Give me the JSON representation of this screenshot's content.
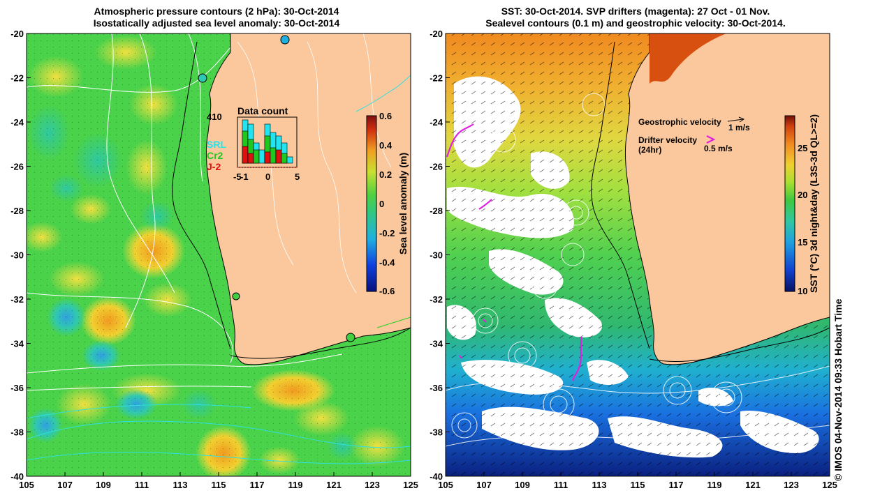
{
  "left_panel": {
    "title_line1": "Atmospheric pressure contours (2 hPa): 30-Oct-2014",
    "title_line2": "Isostatically adjusted sea level anomaly: 30-Oct-2014",
    "colorbar": {
      "label": "Sea level anomaly (m)",
      "ticks": [
        "0.6",
        "0.4",
        "0.2",
        "0",
        "-0.2",
        "-0.4",
        "-0.6"
      ]
    },
    "inset": {
      "title": "Data count",
      "max_count": "410",
      "legend": [
        {
          "label": "SRL",
          "color": "#22e4f0"
        },
        {
          "label": "Cr2",
          "color": "#1ec81e"
        },
        {
          "label": "J-2",
          "color": "#e01010"
        }
      ],
      "x_ticks": [
        "-5",
        "-1",
        "0",
        "5"
      ]
    }
  },
  "right_panel": {
    "title_line1": "SST: 30-Oct-2014. SVP drifters (magenta): 27 Oct - 01 Nov.",
    "title_line2": "Sealevel contours (0.1 m) and geostrophic velocity: 30-Oct-2014.",
    "colorbar": {
      "label": "SST (°C) 3d night&day (L3S-3d QL>=2)",
      "ticks": [
        "25",
        "20",
        "15",
        "10"
      ]
    },
    "legend": {
      "geo_label": "Geostrophic velocity",
      "geo_scale": "1 m/s",
      "drifter_label": "Drifter velocity",
      "drifter_sub": "(24hr)",
      "drifter_scale": "0.5 m/s"
    }
  },
  "axes": {
    "x_ticks": [
      "105",
      "107",
      "109",
      "111",
      "113",
      "115",
      "117",
      "119",
      "121",
      "123",
      "125"
    ],
    "y_ticks": [
      "-20",
      "-22",
      "-24",
      "-26",
      "-28",
      "-30",
      "-32",
      "-34",
      "-36",
      "-38",
      "-40"
    ]
  },
  "credit": "© IMOS 04-Nov-2014 09:33 Hobart Time",
  "colors": {
    "land": "#fac89c",
    "ocean_green": "#4ad24a"
  }
}
